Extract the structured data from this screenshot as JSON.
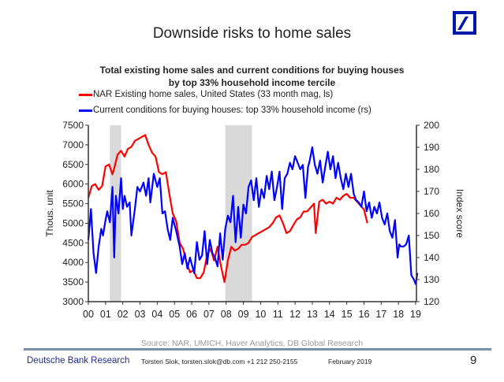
{
  "slide": {
    "title": "Downside risks to home sales",
    "logo": "deutsche-bank-logo",
    "source": "Source: NAR, UMICH, Haver Analytics, DB Global Research",
    "footer": {
      "brand": "Deutsche Bank Research",
      "author": "Torsten Slok, torsten.slok@db.com  +1 212 250-2155",
      "date": "February 2019",
      "page": "9"
    }
  },
  "chart_data": {
    "type": "line",
    "title": "Total existing home sales and current conditions for buying houses",
    "subtitle": "by top 33% household income tercile",
    "xlabel": "",
    "ylabel": "Thous. unit",
    "ylabel_right": "Index score",
    "xlim": [
      2000,
      2019
    ],
    "ylim": [
      3000,
      7500
    ],
    "ylim_right": [
      120,
      200
    ],
    "x_ticks": [
      "00",
      "01",
      "02",
      "03",
      "04",
      "05",
      "06",
      "07",
      "08",
      "09",
      "10",
      "11",
      "12",
      "13",
      "14",
      "15",
      "16",
      "17",
      "18",
      "19"
    ],
    "y_ticks": [
      "3000",
      "3500",
      "4000",
      "4500",
      "5000",
      "5500",
      "6000",
      "6500",
      "7000",
      "7500"
    ],
    "y_ticks_right": [
      "120",
      "130",
      "140",
      "150",
      "160",
      "170",
      "180",
      "190",
      "200"
    ],
    "grid": false,
    "legend_position": "top-left",
    "recessions": [
      [
        2001.25,
        2001.9
      ],
      [
        2007.95,
        2009.5
      ]
    ],
    "colors": {
      "red": "#ff0000",
      "blue": "#0000ff",
      "recession": "#d9d9d9"
    },
    "series": [
      {
        "name": "NAR Existing home sales, United States (33 month mag, ls)",
        "axis": "left",
        "color": "#ff0000",
        "x": [
          2000.0,
          2000.2,
          2000.4,
          2000.6,
          2000.8,
          2001.0,
          2001.2,
          2001.4,
          2001.5,
          2001.7,
          2001.9,
          2002.1,
          2002.3,
          2002.5,
          2002.7,
          2002.9,
          2003.1,
          2003.3,
          2003.5,
          2003.7,
          2003.9,
          2004.1,
          2004.3,
          2004.5,
          2004.7,
          2004.9,
          2005.1,
          2005.3,
          2005.5,
          2005.7,
          2005.9,
          2006.1,
          2006.3,
          2006.5,
          2006.7,
          2006.9,
          2007.1,
          2007.3,
          2007.5,
          2007.7,
          2007.9,
          2008.1,
          2008.3,
          2008.5,
          2008.7,
          2008.9,
          2009.1,
          2009.3,
          2009.5,
          2009.7,
          2009.9,
          2010.1,
          2010.3,
          2010.5,
          2010.7,
          2010.9,
          2011.1,
          2011.3,
          2011.5,
          2011.7,
          2011.9,
          2012.1,
          2012.3,
          2012.5,
          2012.7,
          2012.9,
          2013.1,
          2013.2,
          2013.4,
          2013.6,
          2013.8,
          2014.0,
          2014.2,
          2014.4,
          2014.6,
          2014.8,
          2015.0,
          2015.2,
          2015.4,
          2015.6,
          2015.8,
          2016.0,
          2016.2
        ],
        "values": [
          5650,
          5950,
          6000,
          5850,
          5950,
          6450,
          6500,
          6250,
          6400,
          6750,
          6850,
          6700,
          6900,
          6950,
          7100,
          7150,
          7200,
          7250,
          7000,
          6800,
          6700,
          6300,
          6250,
          6300,
          5750,
          5250,
          5050,
          4500,
          4350,
          4000,
          3750,
          3800,
          3600,
          3600,
          3750,
          4200,
          4350,
          4050,
          4400,
          3900,
          3500,
          4050,
          4400,
          4300,
          4350,
          4450,
          4450,
          4500,
          4650,
          4700,
          4750,
          4800,
          4850,
          4900,
          5000,
          5150,
          5200,
          5000,
          4750,
          4800,
          4950,
          5100,
          5150,
          5300,
          5300,
          5400,
          5500,
          4750,
          5550,
          5600,
          5500,
          5550,
          5500,
          5650,
          5600,
          5700,
          5750,
          5650,
          5650,
          5550,
          5450,
          5350,
          5000
        ]
      },
      {
        "name": "Current conditions for buying houses: top 33% household income (rs)",
        "axis": "right",
        "color": "#0000ff",
        "x": [
          2000.0,
          2000.15,
          2000.3,
          2000.45,
          2000.6,
          2000.75,
          2000.85,
          2001.0,
          2001.1,
          2001.25,
          2001.4,
          2001.5,
          2001.6,
          2001.75,
          2001.9,
          2002.0,
          2002.1,
          2002.25,
          2002.4,
          2002.5,
          2002.7,
          2002.85,
          2003.0,
          2003.2,
          2003.35,
          2003.5,
          2003.6,
          2003.8,
          2004.0,
          2004.15,
          2004.3,
          2004.45,
          2004.6,
          2004.75,
          2004.9,
          2005.1,
          2005.3,
          2005.45,
          2005.6,
          2005.75,
          2005.9,
          2006.0,
          2006.15,
          2006.3,
          2006.45,
          2006.6,
          2006.75,
          2006.9,
          2007.05,
          2007.2,
          2007.35,
          2007.5,
          2007.65,
          2007.8,
          2007.95,
          2008.1,
          2008.25,
          2008.4,
          2008.55,
          2008.7,
          2008.85,
          2009.0,
          2009.15,
          2009.3,
          2009.45,
          2009.6,
          2009.75,
          2009.9,
          2010.05,
          2010.2,
          2010.35,
          2010.5,
          2010.65,
          2010.8,
          2010.95,
          2011.1,
          2011.25,
          2011.4,
          2011.55,
          2011.7,
          2011.85,
          2012.0,
          2012.15,
          2012.3,
          2012.45,
          2012.6,
          2012.75,
          2012.85,
          2013.0,
          2013.15,
          2013.3,
          2013.45,
          2013.6,
          2013.75,
          2013.9,
          2014.05,
          2014.2,
          2014.35,
          2014.5,
          2014.65,
          2014.8,
          2014.95,
          2015.1,
          2015.25,
          2015.4,
          2015.55,
          2015.7,
          2015.85,
          2016.0,
          2016.15,
          2016.3,
          2016.45,
          2016.6,
          2016.75,
          2016.9,
          2017.05,
          2017.2,
          2017.35,
          2017.5,
          2017.65,
          2017.8,
          2017.95,
          2018.05,
          2018.15,
          2018.3,
          2018.45,
          2018.6,
          2018.75,
          2018.9,
          2019.0,
          2019.1
        ],
        "values": [
          148,
          162,
          142,
          133,
          145,
          153,
          150,
          157,
          161,
          156,
          172,
          140,
          168,
          160,
          176,
          162,
          168,
          163,
          165,
          150,
          162,
          172,
          170,
          174,
          168,
          176,
          165,
          178,
          172,
          176,
          160,
          161,
          153,
          148,
          158,
          152,
          145,
          137,
          142,
          135,
          140,
          137,
          133,
          147,
          139,
          141,
          152,
          137,
          148,
          142,
          140,
          136,
          151,
          139,
          153,
          159,
          156,
          168,
          147,
          163,
          149,
          164,
          160,
          172,
          175,
          166,
          176,
          163,
          171,
          167,
          177,
          171,
          179,
          166,
          172,
          179,
          162,
          176,
          178,
          183,
          180,
          186,
          183,
          180,
          182,
          167,
          181,
          184,
          190,
          182,
          178,
          184,
          174,
          181,
          188,
          180,
          186,
          176,
          183,
          176,
          171,
          178,
          172,
          178,
          169,
          166,
          165,
          163,
          170,
          161,
          165,
          158,
          163,
          160,
          165,
          158,
          155,
          160,
          152,
          149,
          157,
          140,
          146,
          145,
          145,
          146,
          150,
          132,
          130,
          128,
          133
        ]
      }
    ]
  }
}
